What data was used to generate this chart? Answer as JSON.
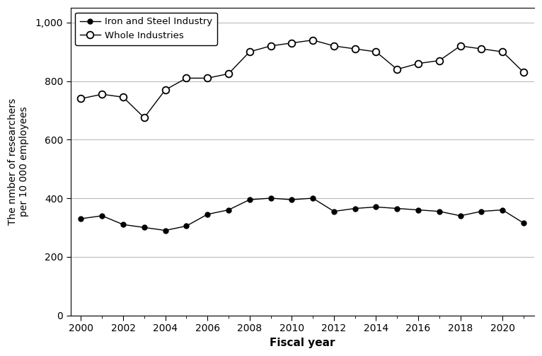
{
  "years": [
    2000,
    2001,
    2002,
    2003,
    2004,
    2005,
    2006,
    2007,
    2008,
    2009,
    2010,
    2011,
    2012,
    2013,
    2014,
    2015,
    2016,
    2017,
    2018,
    2019,
    2020,
    2021
  ],
  "iron_steel": [
    330,
    340,
    310,
    300,
    290,
    305,
    345,
    360,
    395,
    400,
    395,
    400,
    355,
    365,
    370,
    365,
    360,
    355,
    340,
    355,
    360,
    315
  ],
  "whole_industries": [
    740,
    755,
    745,
    675,
    770,
    810,
    810,
    825,
    900,
    920,
    930,
    940,
    920,
    910,
    900,
    840,
    860,
    870,
    920,
    910,
    900,
    830
  ],
  "xlabel": "Fiscal year",
  "ylabel": "The nmber of researchers\nper 10 000 employees",
  "legend_iron": "Iron and Steel Industry",
  "legend_whole": "Whole Industries",
  "ylim": [
    0,
    1050
  ],
  "yticks": [
    0,
    200,
    400,
    600,
    800,
    1000
  ],
  "ytick_labels": [
    "0",
    "200",
    "400",
    "600",
    "800",
    "1,000"
  ],
  "xticks_labeled": [
    2000,
    2002,
    2004,
    2006,
    2008,
    2010,
    2012,
    2014,
    2016,
    2018,
    2020
  ],
  "xticks_minor": [
    2001,
    2003,
    2005,
    2007,
    2009,
    2011,
    2013,
    2015,
    2017,
    2019,
    2021
  ],
  "xlim": [
    1999.5,
    2021.5
  ],
  "line_color": "#000000",
  "background_color": "#ffffff",
  "grid_color": "#bbbbbb",
  "figsize": [
    7.66,
    5.03
  ],
  "dpi": 100
}
